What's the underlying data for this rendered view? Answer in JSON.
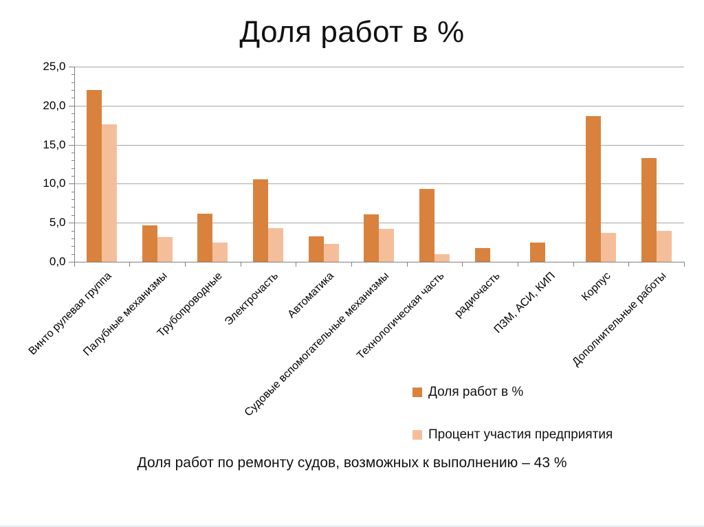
{
  "title": "Доля работ в %",
  "caption": "Доля работ по ремонту судов, возможных к выполнению – 43 %",
  "chart_data": {
    "type": "bar",
    "title": "Доля работ в %",
    "categories": [
      "Винто рулевая группа",
      "Палубные механизмы",
      "Трубопроводные",
      "Электрочасть",
      "Автоматика",
      "Судовые вспомогательные механизмы",
      "Технологическая часть",
      "радиочасть",
      "ПЗМ, АСИ, КИП",
      "Корпус",
      "Дополнительные работы"
    ],
    "series": [
      {
        "name": "Доля работ в %",
        "color": "#D9823D",
        "values": [
          22.0,
          4.7,
          6.2,
          10.6,
          3.3,
          6.1,
          9.3,
          1.8,
          2.5,
          18.7,
          13.3
        ]
      },
      {
        "name": "Процент участия предприятия",
        "color": "#F5BE9B",
        "values": [
          17.6,
          3.2,
          2.5,
          4.3,
          2.3,
          4.2,
          1.0,
          0,
          0,
          3.7,
          4.0
        ]
      }
    ],
    "ylim": [
      0,
      25
    ],
    "ytick_step": 5,
    "ytick_labels": [
      "0,0",
      "5,0",
      "10,0",
      "15,0",
      "20,0",
      "25,0"
    ],
    "grid": "horizontal",
    "grid_color": "#a6a6a6",
    "legend_position": "bottom-right"
  }
}
